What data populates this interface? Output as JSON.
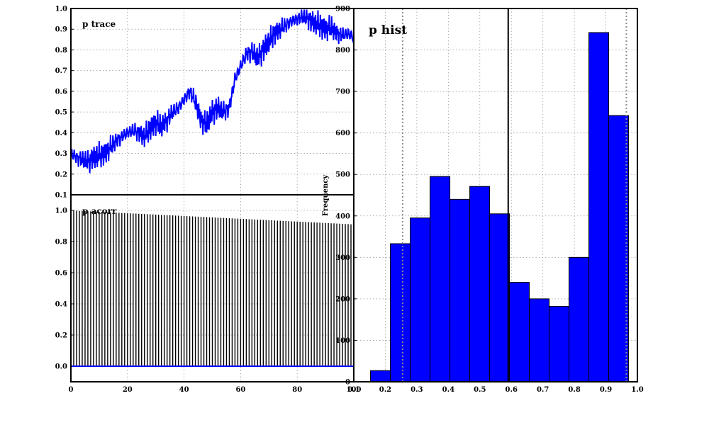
{
  "chart_data": [
    {
      "type": "line",
      "title": "p trace",
      "xlim": [
        0,
        100
      ],
      "ylim": [
        0.1,
        1.0
      ],
      "xticks": [
        0,
        20,
        40,
        60,
        80,
        100
      ],
      "yticks": [
        "0.1",
        "0.2",
        "0.3",
        "0.4",
        "0.5",
        "0.6",
        "0.7",
        "0.8",
        "0.9",
        "1.0"
      ],
      "grid": true,
      "color": "#0000ff",
      "series": [
        {
          "x": [
            0,
            2,
            4,
            6,
            8,
            10,
            12,
            14,
            16,
            18,
            20,
            22,
            24,
            26,
            28,
            30,
            32,
            34,
            36,
            38,
            40,
            42,
            44,
            46,
            48,
            50,
            52,
            54,
            56,
            58,
            60,
            62,
            64,
            66,
            68,
            70,
            72,
            74,
            76,
            78,
            80,
            82,
            84,
            86,
            88,
            90,
            92,
            94,
            96,
            98,
            100
          ],
          "values": [
            0.3,
            0.28,
            0.27,
            0.26,
            0.28,
            0.29,
            0.3,
            0.33,
            0.36,
            0.38,
            0.4,
            0.41,
            0.4,
            0.38,
            0.42,
            0.45,
            0.43,
            0.46,
            0.5,
            0.52,
            0.56,
            0.6,
            0.55,
            0.46,
            0.44,
            0.5,
            0.52,
            0.5,
            0.52,
            0.66,
            0.72,
            0.78,
            0.79,
            0.76,
            0.8,
            0.84,
            0.88,
            0.9,
            0.92,
            0.94,
            0.95,
            0.96,
            0.95,
            0.93,
            0.92,
            0.9,
            0.91,
            0.88,
            0.87,
            0.88,
            0.86
          ]
        }
      ]
    },
    {
      "type": "bar",
      "title": "p acorr",
      "xlim": [
        0,
        100
      ],
      "ylim": [
        -0.1,
        1.1
      ],
      "xticks": [
        0,
        20,
        40,
        60,
        80,
        100
      ],
      "yticks": [
        "0.0",
        "0.2",
        "0.4",
        "0.6",
        "0.8",
        "1.0"
      ],
      "grid": true,
      "lags": 100,
      "acorr_start": 1.0,
      "acorr_end": 0.91,
      "baseline_color": "#0000ff"
    },
    {
      "type": "histogram",
      "title": "p hist",
      "ylabel": "Frequency",
      "xlim": [
        0.1,
        1.0
      ],
      "ylim": [
        0,
        900
      ],
      "xticks": [
        "0.1",
        "0.2",
        "0.3",
        "0.4",
        "0.5",
        "0.6",
        "0.7",
        "0.8",
        "0.9",
        "1.0"
      ],
      "yticks": [
        "0",
        "100",
        "200",
        "300",
        "400",
        "500",
        "600",
        "700",
        "800",
        "900"
      ],
      "grid": true,
      "bin_edges": [
        0.153,
        0.216,
        0.279,
        0.342,
        0.405,
        0.468,
        0.531,
        0.594,
        0.657,
        0.72,
        0.783,
        0.846,
        0.909,
        0.972
      ],
      "counts": [
        27,
        333,
        395,
        495,
        440,
        471,
        405,
        240,
        200,
        182,
        300,
        842,
        642
      ],
      "mean_line": 0.59,
      "ci_lines": [
        0.255,
        0.965
      ],
      "color": "#0000ff"
    }
  ]
}
